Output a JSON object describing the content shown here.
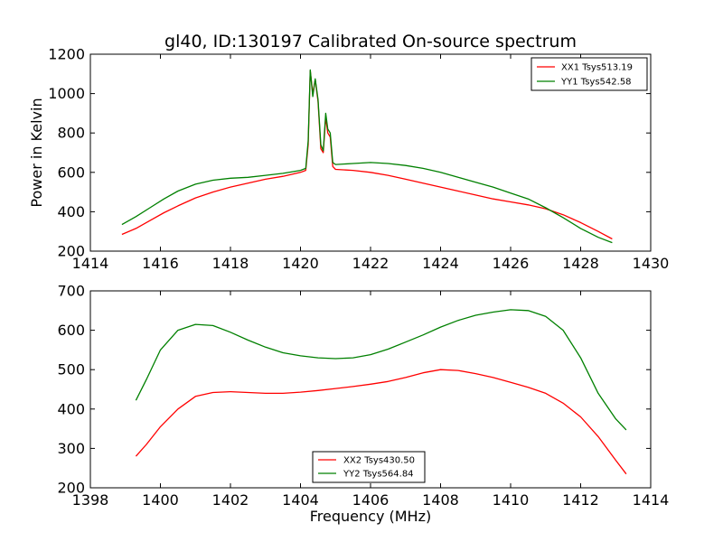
{
  "figure": {
    "title": "gl40, ID:130197 Calibrated On-source spectrum",
    "ylabel": "Power in Kelvin",
    "xlabel": "Frequency (MHz)"
  },
  "chart_data": [
    {
      "type": "line",
      "title": "gl40, ID:130197 Calibrated On-source spectrum",
      "xlabel": "",
      "ylabel": "Power in Kelvin",
      "xlim": [
        1414,
        1430
      ],
      "ylim": [
        200,
        1200
      ],
      "xticks": [
        1414,
        1416,
        1418,
        1420,
        1422,
        1424,
        1426,
        1428,
        1430
      ],
      "yticks": [
        200,
        400,
        600,
        800,
        1000,
        1200
      ],
      "grid": false,
      "legend_position": "top-right",
      "series": [
        {
          "name": "XX1 Tsys513.19",
          "color": "#ff0000",
          "points": [
            [
              1414.9,
              285
            ],
            [
              1415.3,
              315
            ],
            [
              1415.7,
              355
            ],
            [
              1416.1,
              395
            ],
            [
              1416.5,
              430
            ],
            [
              1417.0,
              470
            ],
            [
              1417.5,
              500
            ],
            [
              1418.0,
              525
            ],
            [
              1418.5,
              545
            ],
            [
              1419.0,
              565
            ],
            [
              1419.5,
              580
            ],
            [
              1420.0,
              600
            ],
            [
              1420.15,
              610
            ],
            [
              1420.22,
              740
            ],
            [
              1420.28,
              1115
            ],
            [
              1420.35,
              1000
            ],
            [
              1420.42,
              1070
            ],
            [
              1420.5,
              960
            ],
            [
              1420.58,
              720
            ],
            [
              1420.65,
              700
            ],
            [
              1420.72,
              880
            ],
            [
              1420.78,
              800
            ],
            [
              1420.85,
              780
            ],
            [
              1420.92,
              630
            ],
            [
              1421.0,
              615
            ],
            [
              1421.5,
              610
            ],
            [
              1422.0,
              600
            ],
            [
              1422.5,
              585
            ],
            [
              1423.0,
              565
            ],
            [
              1423.5,
              545
            ],
            [
              1424.0,
              525
            ],
            [
              1424.5,
              505
            ],
            [
              1425.0,
              485
            ],
            [
              1425.5,
              465
            ],
            [
              1426.0,
              450
            ],
            [
              1426.5,
              435
            ],
            [
              1427.0,
              415
            ],
            [
              1427.5,
              385
            ],
            [
              1428.0,
              345
            ],
            [
              1428.5,
              300
            ],
            [
              1428.9,
              262
            ]
          ]
        },
        {
          "name": "YY1 Tsys542.58",
          "color": "#008000",
          "points": [
            [
              1414.9,
              335
            ],
            [
              1415.3,
              375
            ],
            [
              1415.7,
              420
            ],
            [
              1416.1,
              465
            ],
            [
              1416.5,
              505
            ],
            [
              1417.0,
              540
            ],
            [
              1417.5,
              560
            ],
            [
              1418.0,
              570
            ],
            [
              1418.5,
              575
            ],
            [
              1419.0,
              585
            ],
            [
              1419.5,
              595
            ],
            [
              1420.0,
              610
            ],
            [
              1420.15,
              620
            ],
            [
              1420.22,
              760
            ],
            [
              1420.28,
              1120
            ],
            [
              1420.35,
              985
            ],
            [
              1420.42,
              1075
            ],
            [
              1420.5,
              970
            ],
            [
              1420.58,
              740
            ],
            [
              1420.65,
              710
            ],
            [
              1420.72,
              900
            ],
            [
              1420.78,
              820
            ],
            [
              1420.85,
              800
            ],
            [
              1420.92,
              650
            ],
            [
              1421.0,
              640
            ],
            [
              1421.5,
              645
            ],
            [
              1422.0,
              650
            ],
            [
              1422.5,
              645
            ],
            [
              1423.0,
              635
            ],
            [
              1423.5,
              620
            ],
            [
              1424.0,
              600
            ],
            [
              1424.5,
              575
            ],
            [
              1425.0,
              550
            ],
            [
              1425.5,
              525
            ],
            [
              1426.0,
              495
            ],
            [
              1426.5,
              465
            ],
            [
              1427.0,
              420
            ],
            [
              1427.5,
              370
            ],
            [
              1428.0,
              315
            ],
            [
              1428.5,
              270
            ],
            [
              1428.9,
              243
            ]
          ]
        }
      ]
    },
    {
      "type": "line",
      "title": "",
      "xlabel": "Frequency (MHz)",
      "ylabel": "",
      "xlim": [
        1398,
        1414
      ],
      "ylim": [
        200,
        700
      ],
      "xticks": [
        1398,
        1400,
        1402,
        1404,
        1406,
        1408,
        1410,
        1412,
        1414
      ],
      "yticks": [
        200,
        300,
        400,
        500,
        600,
        700
      ],
      "grid": false,
      "legend_position": "bottom-center",
      "series": [
        {
          "name": "XX2 Tsys430.50",
          "color": "#ff0000",
          "points": [
            [
              1399.3,
              280
            ],
            [
              1399.6,
              310
            ],
            [
              1400.0,
              355
            ],
            [
              1400.5,
              400
            ],
            [
              1401.0,
              432
            ],
            [
              1401.5,
              442
            ],
            [
              1402.0,
              444
            ],
            [
              1402.5,
              442
            ],
            [
              1403.0,
              440
            ],
            [
              1403.5,
              440
            ],
            [
              1404.0,
              443
            ],
            [
              1404.5,
              447
            ],
            [
              1405.0,
              452
            ],
            [
              1405.5,
              457
            ],
            [
              1406.0,
              463
            ],
            [
              1406.5,
              470
            ],
            [
              1407.0,
              480
            ],
            [
              1407.5,
              492
            ],
            [
              1408.0,
              500
            ],
            [
              1408.5,
              498
            ],
            [
              1409.0,
              490
            ],
            [
              1409.5,
              480
            ],
            [
              1410.0,
              468
            ],
            [
              1410.5,
              455
            ],
            [
              1411.0,
              440
            ],
            [
              1411.5,
              415
            ],
            [
              1412.0,
              380
            ],
            [
              1412.5,
              330
            ],
            [
              1413.0,
              270
            ],
            [
              1413.3,
              235
            ]
          ]
        },
        {
          "name": "YY2 Tsys564.84",
          "color": "#008000",
          "points": [
            [
              1399.3,
              422
            ],
            [
              1399.6,
              475
            ],
            [
              1400.0,
              550
            ],
            [
              1400.5,
              600
            ],
            [
              1401.0,
              615
            ],
            [
              1401.5,
              612
            ],
            [
              1402.0,
              595
            ],
            [
              1402.5,
              575
            ],
            [
              1403.0,
              557
            ],
            [
              1403.5,
              543
            ],
            [
              1404.0,
              535
            ],
            [
              1404.5,
              530
            ],
            [
              1405.0,
              528
            ],
            [
              1405.5,
              530
            ],
            [
              1406.0,
              538
            ],
            [
              1406.5,
              552
            ],
            [
              1407.0,
              570
            ],
            [
              1407.5,
              588
            ],
            [
              1408.0,
              608
            ],
            [
              1408.5,
              625
            ],
            [
              1409.0,
              638
            ],
            [
              1409.5,
              646
            ],
            [
              1410.0,
              652
            ],
            [
              1410.5,
              650
            ],
            [
              1411.0,
              635
            ],
            [
              1411.5,
              600
            ],
            [
              1412.0,
              530
            ],
            [
              1412.5,
              440
            ],
            [
              1413.0,
              375
            ],
            [
              1413.3,
              347
            ]
          ]
        }
      ]
    }
  ]
}
